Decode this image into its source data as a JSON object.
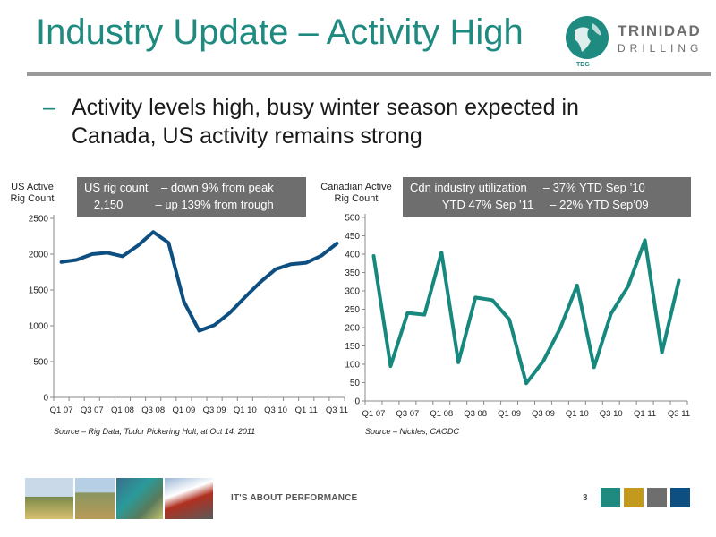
{
  "header": {
    "title": "Industry Update – Activity High",
    "logo_main": "TRINIDAD",
    "logo_sub": "DRILLING",
    "logo_badge": "TDG"
  },
  "bullet": {
    "dash": "–",
    "text": "Activity levels high, busy winter season expected in Canada, US activity remains strong"
  },
  "chart_data": [
    {
      "type": "line",
      "ylabel": "US Active Rig Count",
      "categories": [
        "Q1 07",
        "Q2 07",
        "Q3 07",
        "Q4 07",
        "Q1 08",
        "Q2 08",
        "Q3 08",
        "Q4 08",
        "Q1 09",
        "Q2 09",
        "Q3 09",
        "Q4 09",
        "Q1 10",
        "Q2 10",
        "Q3 10",
        "Q4 10",
        "Q1 11",
        "Q2 11",
        "Q3 11"
      ],
      "tick_labels": [
        "Q1 07",
        "Q3 07",
        "Q1 08",
        "Q3 08",
        "Q1 09",
        "Q3 09",
        "Q1 10",
        "Q3 10",
        "Q1 11",
        "Q3 11"
      ],
      "values": [
        1890,
        1920,
        2000,
        2020,
        1970,
        2120,
        2310,
        2160,
        1340,
        930,
        1010,
        1180,
        1400,
        1610,
        1790,
        1860,
        1880,
        1980,
        2150
      ],
      "ylim": [
        0,
        2500
      ],
      "yticks": [
        0,
        500,
        1000,
        1500,
        2000,
        2500
      ],
      "color": "#0e4f82",
      "grid": false,
      "callout": {
        "line1": "US rig count    – down 9% from peak",
        "line2": "   2,150          – up 139% from trough"
      },
      "source": "Source – Rig Data, Tudor Pickering Holt, at Oct 14, 2011"
    },
    {
      "type": "line",
      "ylabel": "Canadian Active Rig Count",
      "categories": [
        "Q1 07",
        "Q2 07",
        "Q3 07",
        "Q4 07",
        "Q1 08",
        "Q2 08",
        "Q3 08",
        "Q4 08",
        "Q1 09",
        "Q2 09",
        "Q3 09",
        "Q4 09",
        "Q1 10",
        "Q2 10",
        "Q3 10",
        "Q4 10",
        "Q1 11",
        "Q2 11",
        "Q3 11"
      ],
      "tick_labels": [
        "Q1 07",
        "Q3 07",
        "Q1 08",
        "Q3 08",
        "Q1 09",
        "Q3 09",
        "Q1 10",
        "Q3 10",
        "Q1 11",
        "Q3 11"
      ],
      "values": [
        395,
        95,
        240,
        235,
        405,
        105,
        282,
        275,
        222,
        48,
        108,
        198,
        315,
        92,
        238,
        312,
        438,
        132,
        328
      ],
      "ylim": [
        0,
        500
      ],
      "yticks": [
        0,
        50,
        100,
        150,
        200,
        250,
        300,
        350,
        400,
        450,
        500
      ],
      "color": "#17887e",
      "grid": false,
      "callout": {
        "line1": "Cdn industry utilization     – 37% YTD Sep ’10",
        "line2": "          YTD 47% Sep ’11     – 22% YTD Sep’09"
      },
      "source": "Source – Nickles, CAODC"
    }
  ],
  "footer": {
    "tagline": "IT'S ABOUT PERFORMANCE",
    "page": "3",
    "squares": [
      "#1f8a80",
      "#c49a1c",
      "#6e6e6e",
      "#0e4f82"
    ]
  }
}
